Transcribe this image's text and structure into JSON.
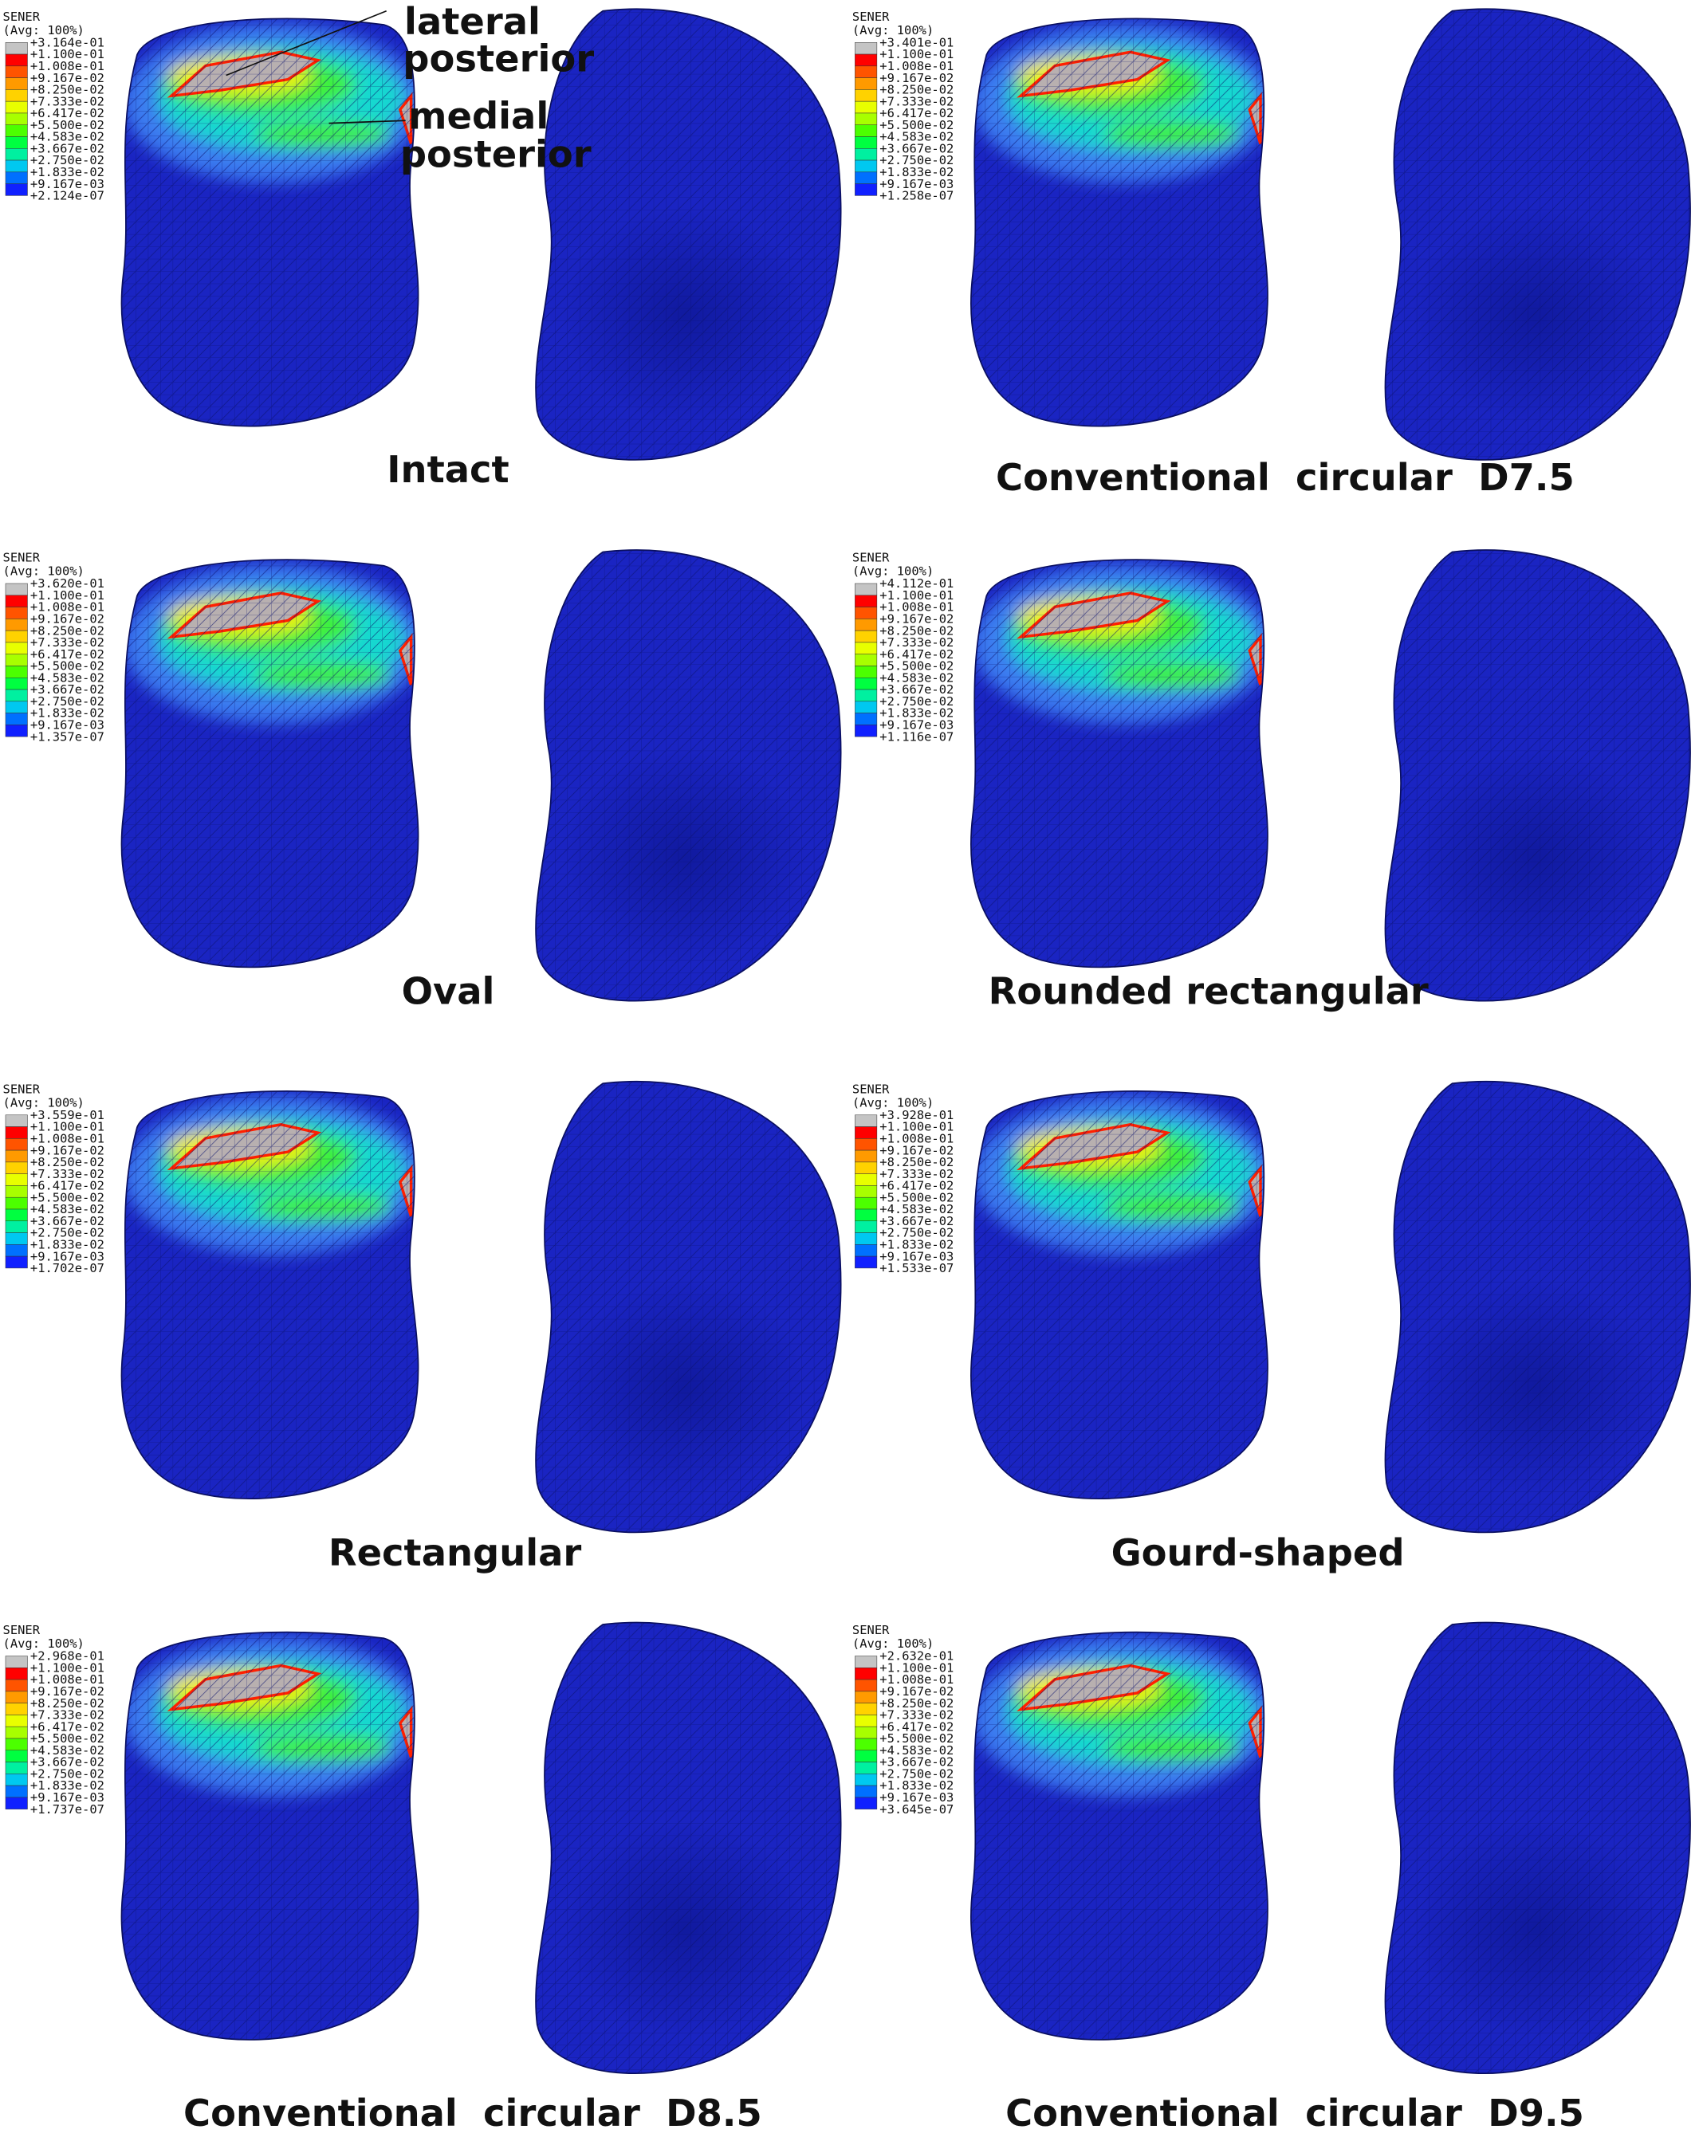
{
  "panels": [
    {
      "legend": {
        "title": "SENER",
        "subtitle": "(Avg: 100%)",
        "values": [
          "+3.164e-01",
          "+1.100e-01",
          "+1.008e-01",
          "+9.167e-02",
          "+8.250e-02",
          "+7.333e-02",
          "+6.417e-02",
          "+5.500e-02",
          "+4.583e-02",
          "+3.667e-02",
          "+2.750e-02",
          "+1.833e-02",
          "+9.167e-03",
          "+2.124e-07"
        ]
      },
      "caption": "Intact",
      "annotations": [
        {
          "lines": [
            "lateral",
            "posterior"
          ]
        },
        {
          "lines": [
            "medial",
            "posterior"
          ]
        }
      ]
    },
    {
      "legend": {
        "title": "SENER",
        "subtitle": "(Avg: 100%)",
        "values": [
          "+3.401e-01",
          "+1.100e-01",
          "+1.008e-01",
          "+9.167e-02",
          "+8.250e-02",
          "+7.333e-02",
          "+6.417e-02",
          "+5.500e-02",
          "+4.583e-02",
          "+3.667e-02",
          "+2.750e-02",
          "+1.833e-02",
          "+9.167e-03",
          "+1.258e-07"
        ]
      },
      "caption": "Conventional  circular  D7.5"
    },
    {
      "legend": {
        "title": "SENER",
        "subtitle": "(Avg: 100%)",
        "values": [
          "+3.620e-01",
          "+1.100e-01",
          "+1.008e-01",
          "+9.167e-02",
          "+8.250e-02",
          "+7.333e-02",
          "+6.417e-02",
          "+5.500e-02",
          "+4.583e-02",
          "+3.667e-02",
          "+2.750e-02",
          "+1.833e-02",
          "+9.167e-03",
          "+1.357e-07"
        ]
      },
      "caption": "Oval"
    },
    {
      "legend": {
        "title": "SENER",
        "subtitle": "(Avg: 100%)",
        "values": [
          "+4.112e-01",
          "+1.100e-01",
          "+1.008e-01",
          "+9.167e-02",
          "+8.250e-02",
          "+7.333e-02",
          "+6.417e-02",
          "+5.500e-02",
          "+4.583e-02",
          "+3.667e-02",
          "+2.750e-02",
          "+1.833e-02",
          "+9.167e-03",
          "+1.116e-07"
        ]
      },
      "caption": "Rounded rectangular"
    },
    {
      "legend": {
        "title": "SENER",
        "subtitle": "(Avg: 100%)",
        "values": [
          "+3.559e-01",
          "+1.100e-01",
          "+1.008e-01",
          "+9.167e-02",
          "+8.250e-02",
          "+7.333e-02",
          "+6.417e-02",
          "+5.500e-02",
          "+4.583e-02",
          "+3.667e-02",
          "+2.750e-02",
          "+1.833e-02",
          "+9.167e-03",
          "+1.702e-07"
        ]
      },
      "caption": "Rectangular"
    },
    {
      "legend": {
        "title": "SENER",
        "subtitle": "(Avg: 100%)",
        "values": [
          "+3.928e-01",
          "+1.100e-01",
          "+1.008e-01",
          "+9.167e-02",
          "+8.250e-02",
          "+7.333e-02",
          "+6.417e-02",
          "+5.500e-02",
          "+4.583e-02",
          "+3.667e-02",
          "+2.750e-02",
          "+1.833e-02",
          "+9.167e-03",
          "+1.533e-07"
        ]
      },
      "caption": "Gourd-shaped"
    },
    {
      "legend": {
        "title": "SENER",
        "subtitle": "(Avg: 100%)",
        "values": [
          "+2.968e-01",
          "+1.100e-01",
          "+1.008e-01",
          "+9.167e-02",
          "+8.250e-02",
          "+7.333e-02",
          "+6.417e-02",
          "+5.500e-02",
          "+4.583e-02",
          "+3.667e-02",
          "+2.750e-02",
          "+1.833e-02",
          "+9.167e-03",
          "+1.737e-07"
        ]
      },
      "caption": "Conventional  circular  D8.5"
    },
    {
      "legend": {
        "title": "SENER",
        "subtitle": "(Avg: 100%)",
        "values": [
          "+2.632e-01",
          "+1.100e-01",
          "+1.008e-01",
          "+9.167e-02",
          "+8.250e-02",
          "+7.333e-02",
          "+6.417e-02",
          "+5.500e-02",
          "+4.583e-02",
          "+3.667e-02",
          "+2.750e-02",
          "+1.833e-02",
          "+9.167e-03",
          "+3.645e-07"
        ]
      },
      "caption": "Conventional  circular  D9.5"
    }
  ]
}
